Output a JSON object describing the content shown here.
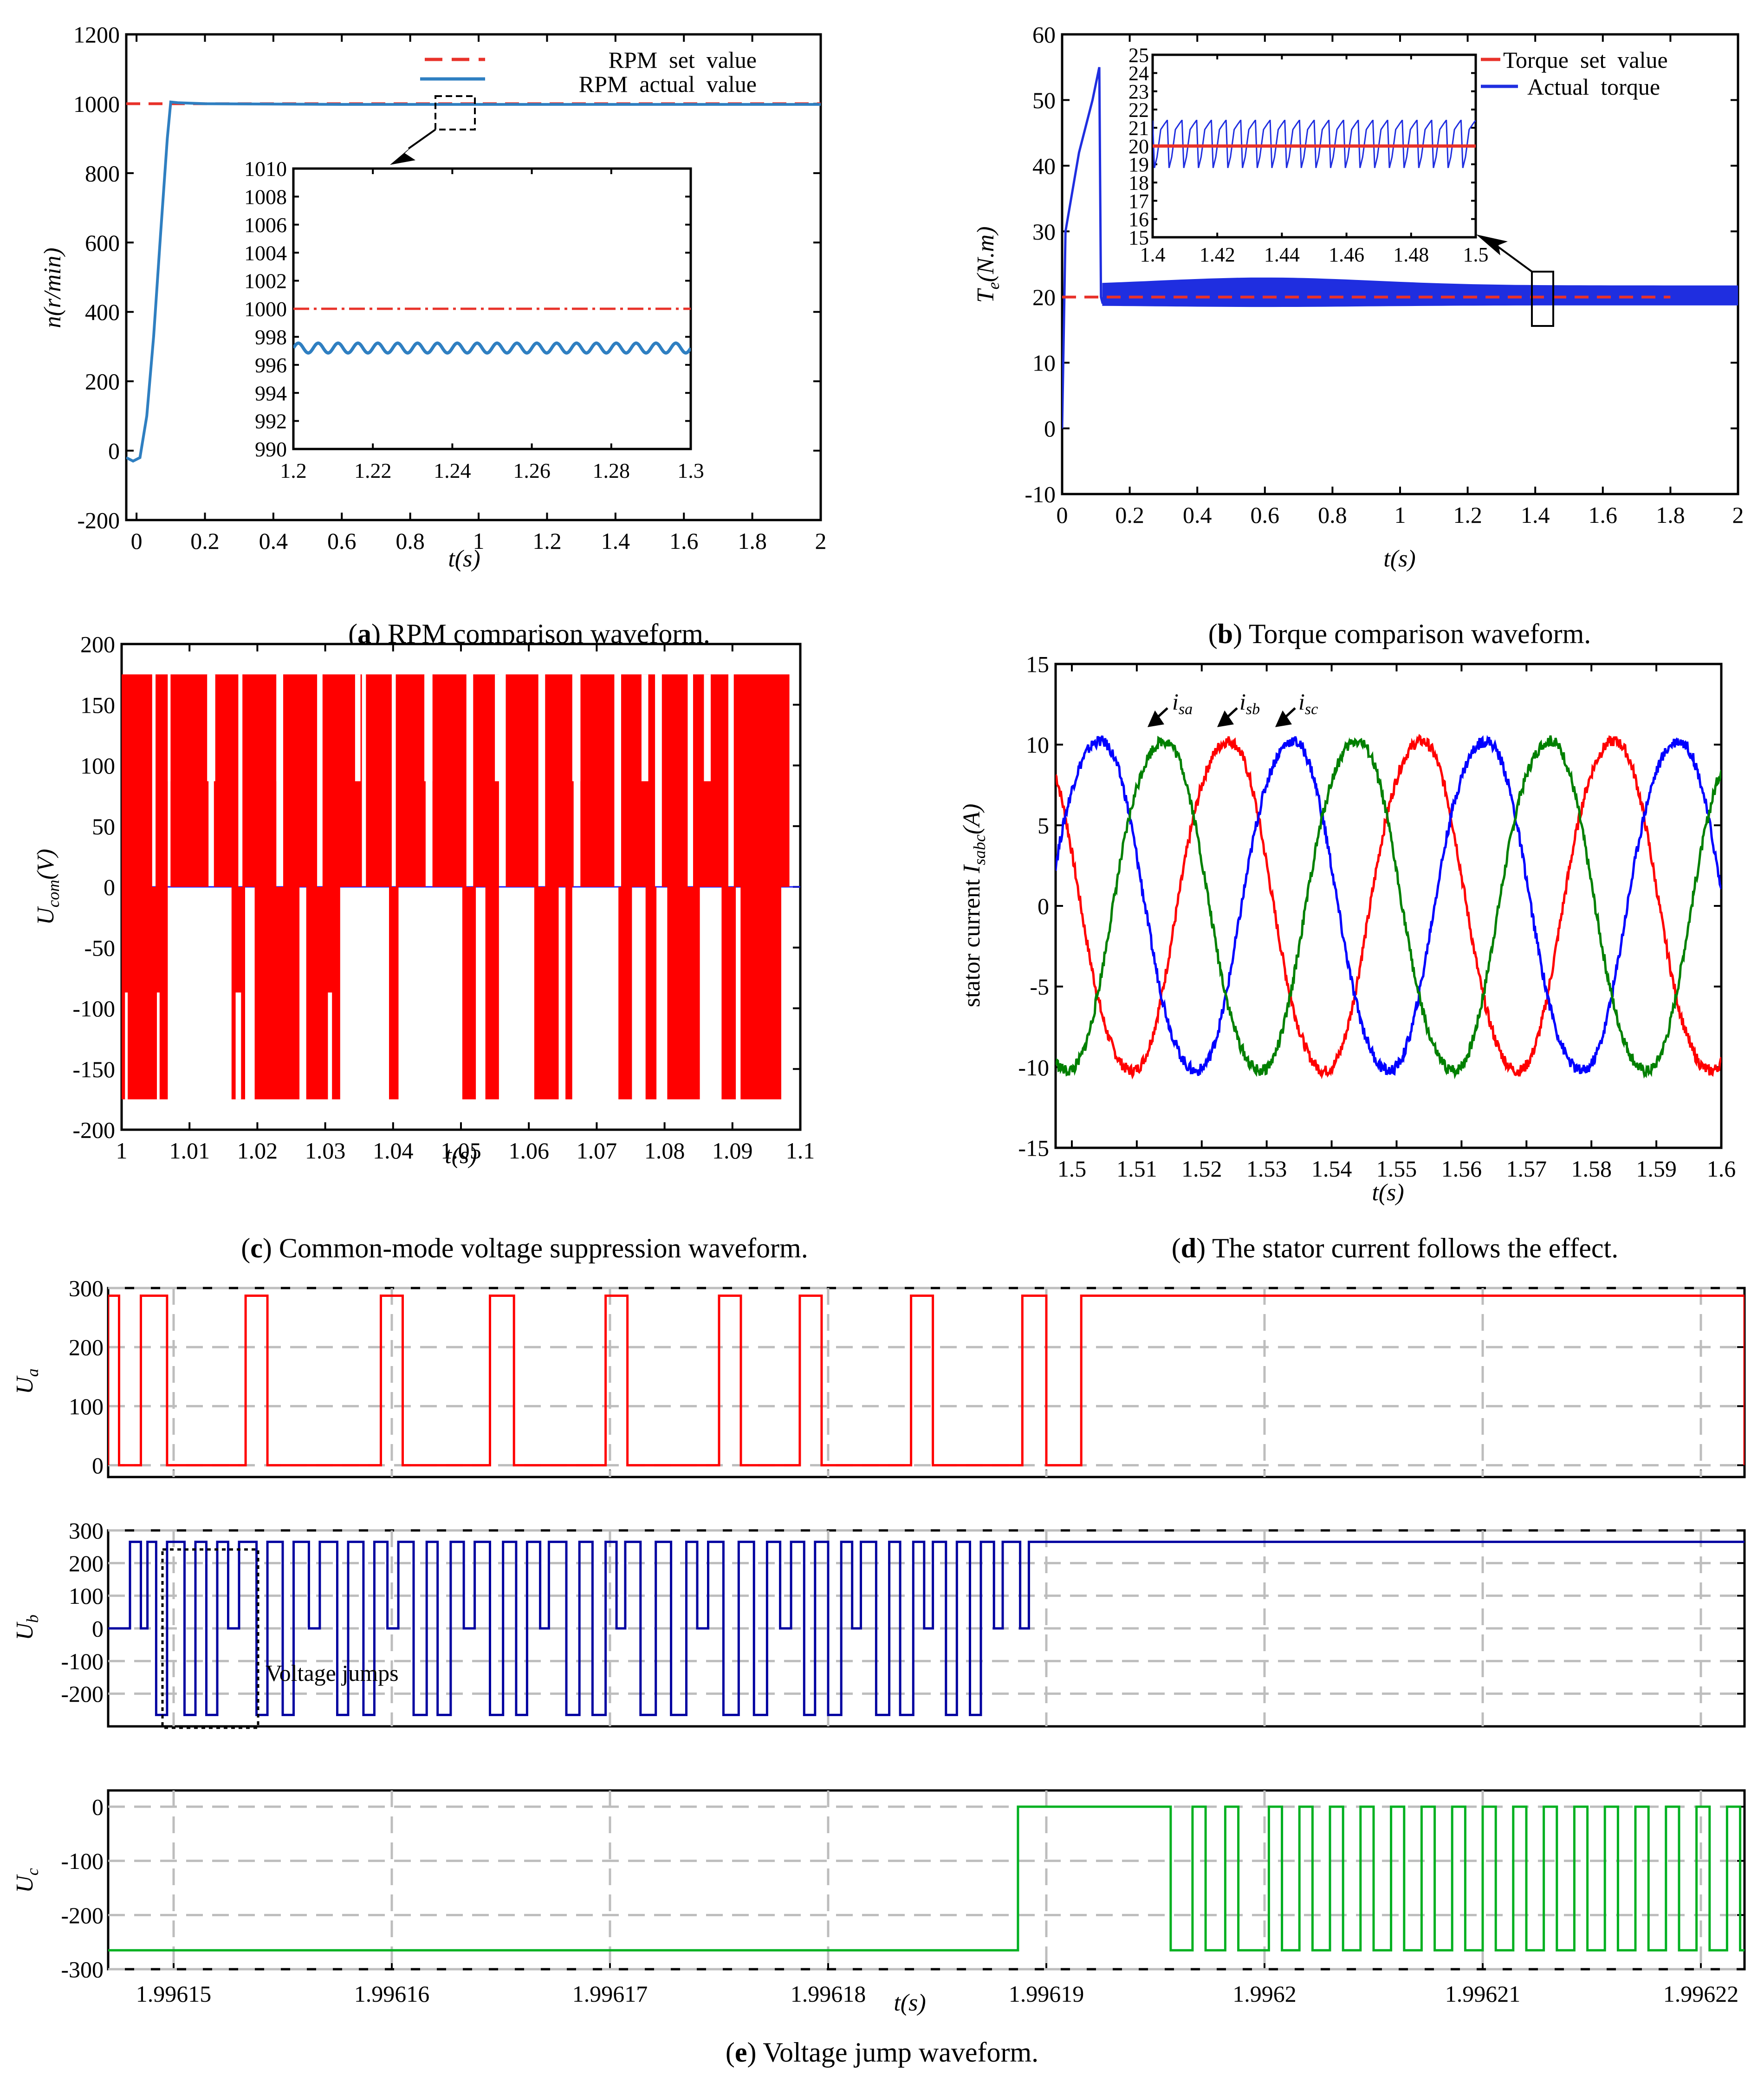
{
  "panels": {
    "a": {
      "label": "a",
      "caption": " RPM comparison waveform."
    },
    "b": {
      "label": "b",
      "caption": " Torque comparison waveform."
    },
    "c": {
      "label": "c",
      "caption": " Common-mode voltage suppression waveform."
    },
    "d": {
      "label": "d",
      "caption": " The stator current follows the effect."
    },
    "e": {
      "label": "e",
      "caption": " Voltage jump waveform."
    }
  },
  "chart_data": [
    {
      "id": "a",
      "type": "line",
      "title": "RPM comparison waveform",
      "xlabel": "t(s)",
      "ylabel": "n(r/min)",
      "xlim": [
        -0.03,
        2
      ],
      "ylim": [
        -200,
        1200
      ],
      "xticks": [
        "0",
        "0.2",
        "0.4",
        "0.6",
        "0.8",
        "1",
        "1.2",
        "1.4",
        "1.6",
        "1.8",
        "2"
      ],
      "yticks": [
        "-200",
        "0",
        "200",
        "400",
        "600",
        "800",
        "1000",
        "1200"
      ],
      "legend": [
        "RPM  set  value",
        "RPM  actual  value"
      ],
      "series": [
        {
          "name": "RPM set value",
          "color": "#e8322a",
          "x": [
            -0.03,
            2
          ],
          "y": [
            1000,
            1000
          ]
        },
        {
          "name": "RPM actual value",
          "color": "#2f7fc1",
          "x": [
            -0.03,
            -0.01,
            0.01,
            0.03,
            0.05,
            0.07,
            0.09,
            0.1,
            0.12,
            0.2,
            0.6,
            1.0,
            1.4,
            1.8,
            2.0
          ],
          "y": [
            -20,
            -30,
            -20,
            100,
            330,
            620,
            900,
            1005,
            1003,
            1000,
            998,
            998,
            998,
            998,
            998
          ]
        }
      ],
      "inset": {
        "xlim": [
          1.2,
          1.3
        ],
        "ylim": [
          990,
          1010
        ],
        "xticks": [
          "1.2",
          "1.22",
          "1.24",
          "1.26",
          "1.28",
          "1.3"
        ],
        "yticks": [
          "990",
          "992",
          "994",
          "996",
          "998",
          "1000",
          "1002",
          "1004",
          "1006",
          "1008",
          "1010"
        ],
        "set_value": 1000,
        "actual_mean": 997.2,
        "actual_ripple": 0.35,
        "ripple_cycles": 20
      }
    },
    {
      "id": "b",
      "type": "line",
      "title": "Torque comparison waveform",
      "xlabel": "t(s)",
      "ylabel": "Te(N.m)",
      "xlim": [
        0,
        2
      ],
      "ylim": [
        -10,
        60
      ],
      "xticks": [
        "0",
        "0.2",
        "0.4",
        "0.6",
        "0.8",
        "1",
        "1.2",
        "1.4",
        "1.6",
        "1.8",
        "2"
      ],
      "yticks": [
        "-10",
        "0",
        "10",
        "20",
        "30",
        "40",
        "50",
        "60"
      ],
      "legend": [
        "Torque  set  value",
        "Actual  torque"
      ],
      "series": [
        {
          "name": "Torque set value",
          "color": "#e8322a",
          "x": [
            0,
            1.8
          ],
          "y": [
            20,
            20
          ]
        },
        {
          "name": "Actual torque",
          "color": "#1f2ee0",
          "x": [
            0,
            0.01,
            0.05,
            0.09,
            0.11,
            0.115,
            0.12,
            0.2,
            0.6,
            1.0,
            1.4,
            1.8,
            2.0
          ],
          "y": [
            0,
            30,
            42,
            50,
            55,
            20,
            19,
            20.5,
            21,
            20.5,
            20,
            19.8,
            19.8
          ],
          "band_low": 18.5,
          "band_high": 22.5
        }
      ],
      "inset": {
        "xlim": [
          1.4,
          1.5
        ],
        "ylim": [
          15,
          25
        ],
        "xticks": [
          "1.4",
          "1.42",
          "1.44",
          "1.46",
          "1.48",
          "1.5"
        ],
        "yticks": [
          "15",
          "16",
          "17",
          "18",
          "19",
          "20",
          "21",
          "22",
          "23",
          "24",
          "25"
        ],
        "set_value": 20,
        "actual_low": 18.8,
        "actual_high": 21.4,
        "ripple_cycles": 22
      }
    },
    {
      "id": "c",
      "type": "line",
      "title": "Common-mode voltage suppression waveform",
      "xlabel": "t(s)",
      "ylabel": "Ucom(V)",
      "xlim": [
        1,
        1.1
      ],
      "ylim": [
        -200,
        200
      ],
      "xticks": [
        "1",
        "1.01",
        "1.02",
        "1.03",
        "1.04",
        "1.05",
        "1.06",
        "1.07",
        "1.08",
        "1.09",
        "1.1"
      ],
      "yticks": [
        "-200",
        "-150",
        "-100",
        "-50",
        "0",
        "50",
        "100",
        "150",
        "200"
      ],
      "levels": [
        -175,
        -87,
        0,
        87,
        175
      ],
      "color": "#ff0000",
      "positive_blocks": [
        [
          1.0,
          1.0045
        ],
        [
          1.005,
          1.0068
        ],
        [
          1.0072,
          1.0128
        ],
        [
          1.0136,
          1.0172
        ],
        [
          1.0178,
          1.0228
        ],
        [
          1.0238,
          1.0288
        ],
        [
          1.0296,
          1.0354
        ],
        [
          1.036,
          1.0398
        ],
        [
          1.0404,
          1.0448
        ],
        [
          1.0458,
          1.0508
        ],
        [
          1.0518,
          1.0556
        ],
        [
          1.0566,
          1.0614
        ],
        [
          1.0624,
          1.0666
        ],
        [
          1.0676,
          1.0726
        ],
        [
          1.0736,
          1.0786
        ],
        [
          1.0796,
          1.0834
        ],
        [
          1.0842,
          1.0894
        ],
        [
          1.0902,
          1.0984
        ]
      ],
      "negative_blocks": [
        [
          1.0,
          1.0068
        ],
        [
          1.0162,
          1.0182
        ],
        [
          1.0196,
          1.0262
        ],
        [
          1.0272,
          1.0322
        ],
        [
          1.0394,
          1.0408
        ],
        [
          1.0502,
          1.0522
        ],
        [
          1.0536,
          1.0556
        ],
        [
          1.0608,
          1.0644
        ],
        [
          1.0654,
          1.0664
        ],
        [
          1.0732,
          1.0752
        ],
        [
          1.0772,
          1.0788
        ],
        [
          1.0804,
          1.0852
        ],
        [
          1.0884,
          1.0905
        ],
        [
          1.0912,
          1.0972
        ]
      ],
      "mid_blocks_positive": [
        [
          1.0068,
          1.0072
        ],
        [
          1.0126,
          1.0138
        ],
        [
          1.0228,
          1.0238
        ],
        [
          1.0344,
          1.0352
        ],
        [
          1.0446,
          1.0458
        ],
        [
          1.055,
          1.0562
        ],
        [
          1.0664,
          1.0676
        ],
        [
          1.0766,
          1.0776
        ],
        [
          1.0858,
          1.0868
        ]
      ],
      "mid_blocks_negative": [
        [
          1.0005,
          1.0009
        ],
        [
          1.0052,
          1.0056
        ],
        [
          1.0168,
          1.0176
        ],
        [
          1.0304,
          1.031
        ]
      ]
    },
    {
      "id": "d",
      "type": "line",
      "title": "The stator current follows the effect",
      "xlabel": "t(s)",
      "ylabel": "stator current Isabc(A)",
      "xlim": [
        1.4975,
        1.6
      ],
      "ylim": [
        -15,
        15
      ],
      "xticks": [
        "1.5",
        "1.51",
        "1.52",
        "1.53",
        "1.54",
        "1.55",
        "1.56",
        "1.57",
        "1.58",
        "1.59",
        "1.6"
      ],
      "yticks": [
        "-15",
        "-10",
        "-5",
        "0",
        "5",
        "10",
        "15"
      ],
      "amplitude": 10.5,
      "period": 0.0297,
      "annotations": [
        "isa",
        "isb",
        "isc"
      ],
      "series": [
        {
          "name": "isa",
          "color": "#ff0000",
          "phase_deg": 132
        },
        {
          "name": "isb",
          "color": "#0000ff",
          "phase_deg": 12
        },
        {
          "name": "isc",
          "color": "#008000",
          "phase_deg": 252
        }
      ]
    },
    {
      "id": "e",
      "type": "line",
      "title": "Voltage jump waveform",
      "xlabel": "t(s)",
      "xlim": [
        1.996147,
        1.996222
      ],
      "xticks": [
        "1.99615",
        "1.99616",
        "1.99617",
        "1.99618",
        "1.99619",
        "1.9962",
        "1.99621",
        "1.99622"
      ],
      "annotation": "Voltage jumps",
      "subplots": [
        {
          "name": "Ua",
          "color": "#ff0000",
          "ylim": [
            -20,
            300
          ],
          "yticks": [
            "0",
            "100",
            "200",
            "300"
          ],
          "levels": [
            0,
            287
          ],
          "high_intervals": [
            [
              1.996147,
              1.9961475
            ],
            [
              1.9961485,
              1.9961497
            ],
            [
              1.9961533,
              1.9961543
            ],
            [
              1.9961595,
              1.9961605
            ],
            [
              1.9961645,
              1.9961656
            ],
            [
              1.9961698,
              1.9961708
            ],
            [
              1.996175,
              1.996176
            ],
            [
              1.9961787,
              1.9961797
            ],
            [
              1.9961838,
              1.9961848
            ],
            [
              1.9961889,
              1.99619
            ],
            [
              1.9961916,
              1.996222
            ]
          ]
        },
        {
          "name": "Ub",
          "color": "#0000a0",
          "ylim": [
            -300,
            300
          ],
          "yticks": [
            "-200",
            "-100",
            "0",
            "100",
            "200",
            "300"
          ],
          "levels": [
            -265,
            0,
            265
          ],
          "sequence": [
            [
              1.996147,
              0
            ],
            [
              1.996148,
              265
            ],
            [
              1.9961485,
              0
            ],
            [
              1.9961488,
              265
            ],
            [
              1.9961492,
              -265
            ],
            [
              1.9961497,
              265
            ],
            [
              1.9961505,
              -265
            ],
            [
              1.996151,
              265
            ],
            [
              1.9961515,
              -265
            ],
            [
              1.996152,
              265
            ],
            [
              1.9961525,
              0
            ],
            [
              1.996153,
              265
            ],
            [
              1.9961538,
              -265
            ],
            [
              1.9961543,
              265
            ],
            [
              1.996155,
              -265
            ],
            [
              1.9961555,
              265
            ],
            [
              1.9961562,
              0
            ],
            [
              1.9961567,
              265
            ],
            [
              1.9961575,
              -265
            ],
            [
              1.996158,
              265
            ],
            [
              1.9961587,
              -265
            ],
            [
              1.9961592,
              265
            ],
            [
              1.9961598,
              0
            ],
            [
              1.9961603,
              265
            ],
            [
              1.996161,
              -265
            ],
            [
              1.9961616,
              265
            ],
            [
              1.9961621,
              -265
            ],
            [
              1.9961627,
              265
            ],
            [
              1.9961633,
              0
            ],
            [
              1.9961638,
              265
            ],
            [
              1.9961645,
              -265
            ],
            [
              1.9961651,
              265
            ],
            [
              1.9961657,
              -265
            ],
            [
              1.9961662,
              265
            ],
            [
              1.9961668,
              0
            ],
            [
              1.9961672,
              265
            ],
            [
              1.996168,
              -265
            ],
            [
              1.9961686,
              265
            ],
            [
              1.9961692,
              -265
            ],
            [
              1.9961698,
              265
            ],
            [
              1.9961703,
              0
            ],
            [
              1.9961707,
              265
            ],
            [
              1.9961714,
              -265
            ],
            [
              1.9961721,
              265
            ],
            [
              1.9961728,
              -265
            ],
            [
              1.9961735,
              265
            ],
            [
              1.996174,
              0
            ],
            [
              1.9961745,
              265
            ],
            [
              1.9961752,
              -265
            ],
            [
              1.9961759,
              265
            ],
            [
              1.9961766,
              -265
            ],
            [
              1.9961772,
              265
            ],
            [
              1.9961778,
              0
            ],
            [
              1.9961783,
              265
            ],
            [
              1.9961789,
              -265
            ],
            [
              1.9961794,
              265
            ],
            [
              1.99618,
              -265
            ],
            [
              1.9961806,
              265
            ],
            [
              1.9961811,
              0
            ],
            [
              1.9961815,
              265
            ],
            [
              1.9961822,
              -265
            ],
            [
              1.9961828,
              265
            ],
            [
              1.9961833,
              -265
            ],
            [
              1.9961839,
              265
            ],
            [
              1.9961844,
              0
            ],
            [
              1.9961848,
              265
            ],
            [
              1.9961854,
              -265
            ],
            [
              1.9961859,
              265
            ],
            [
              1.9961865,
              -265
            ],
            [
              1.996187,
              265
            ],
            [
              1.9961876,
              0
            ],
            [
              1.996188,
              265
            ],
            [
              1.9961888,
              0
            ],
            [
              1.9961892,
              265
            ],
            [
              1.996222,
              265
            ]
          ]
        },
        {
          "name": "Uc",
          "color": "#00b020",
          "ylim": [
            -300,
            30
          ],
          "yticks": [
            "-300",
            "-200",
            "-100",
            "0"
          ],
          "levels": [
            -265,
            0
          ],
          "high_intervals": [
            [
              1.9961887,
              1.9961957
            ],
            [
              1.9961967,
              1.9961973
            ],
            [
              1.9961982,
              1.9961988
            ],
            [
              1.9962002,
              1.9962008
            ],
            [
              1.9962016,
              1.9962022
            ],
            [
              1.996203,
              1.9962036
            ],
            [
              1.9962044,
              1.996205
            ],
            [
              1.9962058,
              1.9962064
            ],
            [
              1.9962072,
              1.9962078
            ],
            [
              1.9962086,
              1.9962092
            ],
            [
              1.99621,
              1.9962106
            ],
            [
              1.9962114,
              1.996212
            ],
            [
              1.9962128,
              1.9962134
            ],
            [
              1.9962142,
              1.9962148
            ],
            [
              1.9962156,
              1.9962162
            ],
            [
              1.996217,
              1.9962176
            ],
            [
              1.9962184,
              1.996219
            ],
            [
              1.9962198,
              1.9962204
            ],
            [
              1.9962212,
              1.9962218
            ]
          ]
        }
      ]
    }
  ]
}
